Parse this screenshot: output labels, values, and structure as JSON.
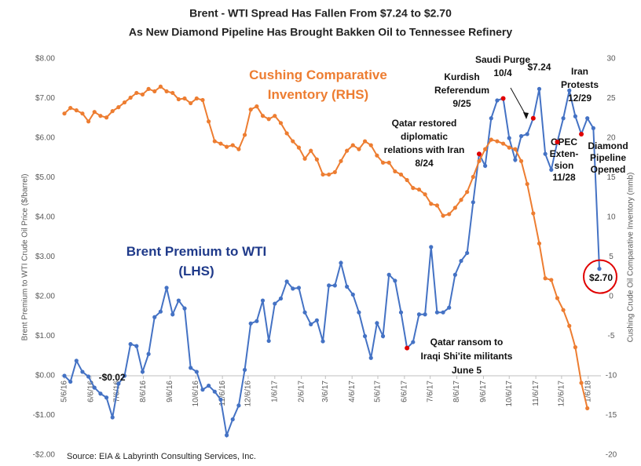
{
  "chart_data": {
    "type": "line",
    "title": "Brent - WTI Spread Has Fallen From $7.24 to $2.70",
    "subtitle": "As New Diamond Pipeline Has Brought Bakken Oil to Tennessee Refinery",
    "y_label": "Brent Premium to WTI Crude Oil Price ($/barrel)",
    "y2_label": "Cushing Crude Oil Comparative Inventory (mmb)",
    "source": "Source: EIA & Labyrinth Consulting Services, Inc.",
    "x": [
      "2016-05-06",
      "2016-05-13",
      "2016-05-20",
      "2016-05-27",
      "2016-06-03",
      "2016-06-10",
      "2016-06-17",
      "2016-06-24",
      "2016-07-01",
      "2016-07-08",
      "2016-07-15",
      "2016-07-22",
      "2016-07-29",
      "2016-08-05",
      "2016-08-12",
      "2016-08-19",
      "2016-08-26",
      "2016-09-02",
      "2016-09-09",
      "2016-09-16",
      "2016-09-23",
      "2016-09-30",
      "2016-10-07",
      "2016-10-14",
      "2016-10-21",
      "2016-10-28",
      "2016-11-04",
      "2016-11-11",
      "2016-11-18",
      "2016-11-25",
      "2016-12-02",
      "2016-12-09",
      "2016-12-16",
      "2016-12-23",
      "2016-12-30",
      "2017-01-06",
      "2017-01-13",
      "2017-01-20",
      "2017-01-27",
      "2017-02-03",
      "2017-02-10",
      "2017-02-17",
      "2017-02-24",
      "2017-03-03",
      "2017-03-10",
      "2017-03-17",
      "2017-03-24",
      "2017-03-31",
      "2017-04-07",
      "2017-04-14",
      "2017-04-21",
      "2017-04-28",
      "2017-05-05",
      "2017-05-12",
      "2017-05-19",
      "2017-05-26",
      "2017-06-02",
      "2017-06-09",
      "2017-06-16",
      "2017-06-23",
      "2017-06-30",
      "2017-07-07",
      "2017-07-14",
      "2017-07-21",
      "2017-07-28",
      "2017-08-04",
      "2017-08-11",
      "2017-08-18",
      "2017-08-25",
      "2017-09-01",
      "2017-09-08",
      "2017-09-15",
      "2017-09-22",
      "2017-09-29",
      "2017-10-06",
      "2017-10-13",
      "2017-10-20",
      "2017-10-27",
      "2017-11-03",
      "2017-11-10",
      "2017-11-17",
      "2017-11-24",
      "2017-12-01",
      "2017-12-08",
      "2017-12-15",
      "2017-12-22",
      "2017-12-29",
      "2018-01-05",
      "2018-01-12",
      "2018-01-19"
    ],
    "series": [
      {
        "name": "Brent Premium to WTI (LHS)",
        "color": "#4472c4",
        "label_color": "#1f3a8a",
        "axis": "y",
        "values": [
          0.0,
          -0.15,
          0.38,
          0.1,
          -0.02,
          -0.3,
          -0.45,
          -0.55,
          -1.05,
          -0.2,
          0.0,
          0.8,
          0.75,
          0.1,
          0.55,
          1.48,
          1.62,
          2.22,
          1.55,
          1.9,
          1.7,
          0.2,
          0.1,
          -0.35,
          -0.25,
          -0.4,
          -0.6,
          -1.5,
          -1.1,
          -0.75,
          0.15,
          1.32,
          1.38,
          1.9,
          0.88,
          1.82,
          1.95,
          2.38,
          2.2,
          2.22,
          1.6,
          1.3,
          1.4,
          0.87,
          2.28,
          2.28,
          2.85,
          2.25,
          2.05,
          1.6,
          1.0,
          0.45,
          1.33,
          1.0,
          2.55,
          2.4,
          1.6,
          0.7,
          0.85,
          1.55,
          1.55,
          3.25,
          1.6,
          1.6,
          1.72,
          2.55,
          2.9,
          3.1,
          4.38,
          5.6,
          5.3,
          6.5,
          6.95,
          7.0,
          6.0,
          5.45,
          6.05,
          6.1,
          6.5,
          7.24,
          5.6,
          5.2,
          5.9,
          6.5,
          7.2,
          6.55,
          6.1,
          6.5,
          6.25,
          2.7
        ],
        "value_labels": [
          null,
          null,
          null,
          null,
          "-$0.02",
          null,
          null,
          null,
          null,
          null,
          null,
          null,
          null,
          null,
          null,
          null,
          null,
          null,
          null,
          null,
          null,
          null,
          null,
          null,
          null,
          null,
          null,
          null,
          null,
          null,
          null,
          null,
          null,
          null,
          null,
          null,
          null,
          null,
          null,
          null,
          null,
          null,
          null,
          null,
          null,
          null,
          null,
          null,
          null,
          null,
          null,
          null,
          null,
          null,
          null,
          null,
          null,
          null,
          null,
          null,
          null,
          null,
          null,
          null,
          null,
          null,
          null,
          null,
          null,
          null,
          null,
          null,
          null,
          null,
          null,
          null,
          null,
          null,
          null,
          "$7.24",
          null,
          null,
          null,
          null,
          null,
          null,
          null,
          null,
          null,
          "$2.70"
        ]
      },
      {
        "name": "Cushing Comparative Inventory (RHS)",
        "color": "#ed7d31",
        "label_color": "#ed7d31",
        "axis": "y2",
        "values": [
          23.1,
          23.8,
          23.5,
          23.1,
          22.1,
          23.3,
          22.8,
          22.6,
          23.4,
          23.9,
          24.5,
          25.1,
          25.7,
          25.5,
          26.2,
          25.9,
          26.5,
          25.9,
          25.7,
          24.9,
          25.0,
          24.4,
          25.0,
          24.8,
          22.1,
          19.6,
          19.3,
          18.9,
          19.1,
          18.6,
          20.4,
          23.6,
          24.0,
          22.8,
          22.4,
          22.8,
          21.9,
          20.6,
          19.6,
          18.8,
          17.4,
          18.4,
          17.3,
          15.4,
          15.4,
          15.7,
          17.1,
          18.4,
          19.1,
          18.6,
          19.6,
          19.1,
          17.8,
          16.9,
          16.9,
          15.8,
          15.4,
          14.7,
          13.7,
          13.5,
          12.9,
          11.7,
          11.5,
          10.2,
          10.4,
          11.2,
          12.2,
          13.2,
          15.1,
          17.1,
          18.6,
          19.8,
          19.6,
          19.3,
          18.8,
          18.6,
          17.1,
          14.2,
          10.5,
          6.7,
          2.3,
          2.1,
          -0.2,
          -1.7,
          -3.7,
          -6.4,
          -10.9,
          -14.1,
          null,
          null
        ]
      }
    ],
    "annotations": [
      {
        "lines": [
          "Qatar restored",
          "diplomatic",
          "relations with Iran",
          "8/24"
        ],
        "x": "2017-09-01",
        "y": 5.6
      },
      {
        "lines": [
          "Kurdish",
          "Referendum",
          "9/25"
        ],
        "x": "2017-09-29",
        "y": 7.0
      },
      {
        "lines": [
          "Saudi Purge",
          "10/4"
        ],
        "x": "2017-11-03",
        "y": 6.5
      },
      {
        "lines": [
          "Iran",
          "Protests",
          "12/29"
        ],
        "x": "2017-12-29",
        "y": 6.1
      },
      {
        "lines": [
          "OPEC",
          "Exten-",
          "sion",
          "11/28"
        ],
        "x": "2017-12-01",
        "y": 5.9
      },
      {
        "lines": [
          "Diamond",
          "Pipeline",
          "Opened"
        ]
      },
      {
        "lines": [
          "Qatar ransom to",
          "Iraqi Shi'ite militants",
          "June 5"
        ],
        "x": "2017-06-09",
        "y": 0.7
      }
    ],
    "xlim": [
      "2016-05-06",
      "2018-01-19"
    ],
    "xticks": [
      {
        "value": "2016-05-06",
        "label": "5/6/16"
      },
      {
        "value": "2016-06-06",
        "label": "6/6/16"
      },
      {
        "value": "2016-07-06",
        "label": "7/6/16"
      },
      {
        "value": "2016-08-06",
        "label": "8/6/16"
      },
      {
        "value": "2016-09-06",
        "label": "9/6/16"
      },
      {
        "value": "2016-10-06",
        "label": "10/6/16"
      },
      {
        "value": "2016-11-06",
        "label": "11/6/16"
      },
      {
        "value": "2016-12-06",
        "label": "12/6/16"
      },
      {
        "value": "2017-01-06",
        "label": "1/6/17"
      },
      {
        "value": "2017-02-06",
        "label": "2/6/17"
      },
      {
        "value": "2017-03-06",
        "label": "3/6/17"
      },
      {
        "value": "2017-04-06",
        "label": "4/6/17"
      },
      {
        "value": "2017-05-06",
        "label": "5/6/17"
      },
      {
        "value": "2017-06-06",
        "label": "6/6/17"
      },
      {
        "value": "2017-07-06",
        "label": "7/6/17"
      },
      {
        "value": "2017-08-06",
        "label": "8/6/17"
      },
      {
        "value": "2017-09-06",
        "label": "9/6/17"
      },
      {
        "value": "2017-10-06",
        "label": "10/6/17"
      },
      {
        "value": "2017-11-06",
        "label": "11/6/17"
      },
      {
        "value": "2017-12-06",
        "label": "12/6/17"
      },
      {
        "value": "2018-01-06",
        "label": "1/6/18"
      }
    ],
    "ylim": [
      -2,
      8
    ],
    "yticks": [
      {
        "value": 8,
        "label": "$8.00"
      },
      {
        "value": 7,
        "label": "$7.00"
      },
      {
        "value": 6,
        "label": "$6.00"
      },
      {
        "value": 5,
        "label": "$5.00"
      },
      {
        "value": 4,
        "label": "$4.00"
      },
      {
        "value": 3,
        "label": "$3.00"
      },
      {
        "value": 2,
        "label": "$2.00"
      },
      {
        "value": 1,
        "label": "$1.00"
      },
      {
        "value": 0,
        "label": "$0.00"
      },
      {
        "value": -1,
        "label": "-$1.00"
      },
      {
        "value": -2,
        "label": "-$2.00"
      }
    ],
    "y2lim": [
      -20,
      30
    ],
    "y2ticks": [
      30,
      25,
      20,
      15,
      10,
      5,
      0,
      -5,
      -10,
      -15,
      -20
    ],
    "annotation_color": "#e00000",
    "grid": false
  }
}
